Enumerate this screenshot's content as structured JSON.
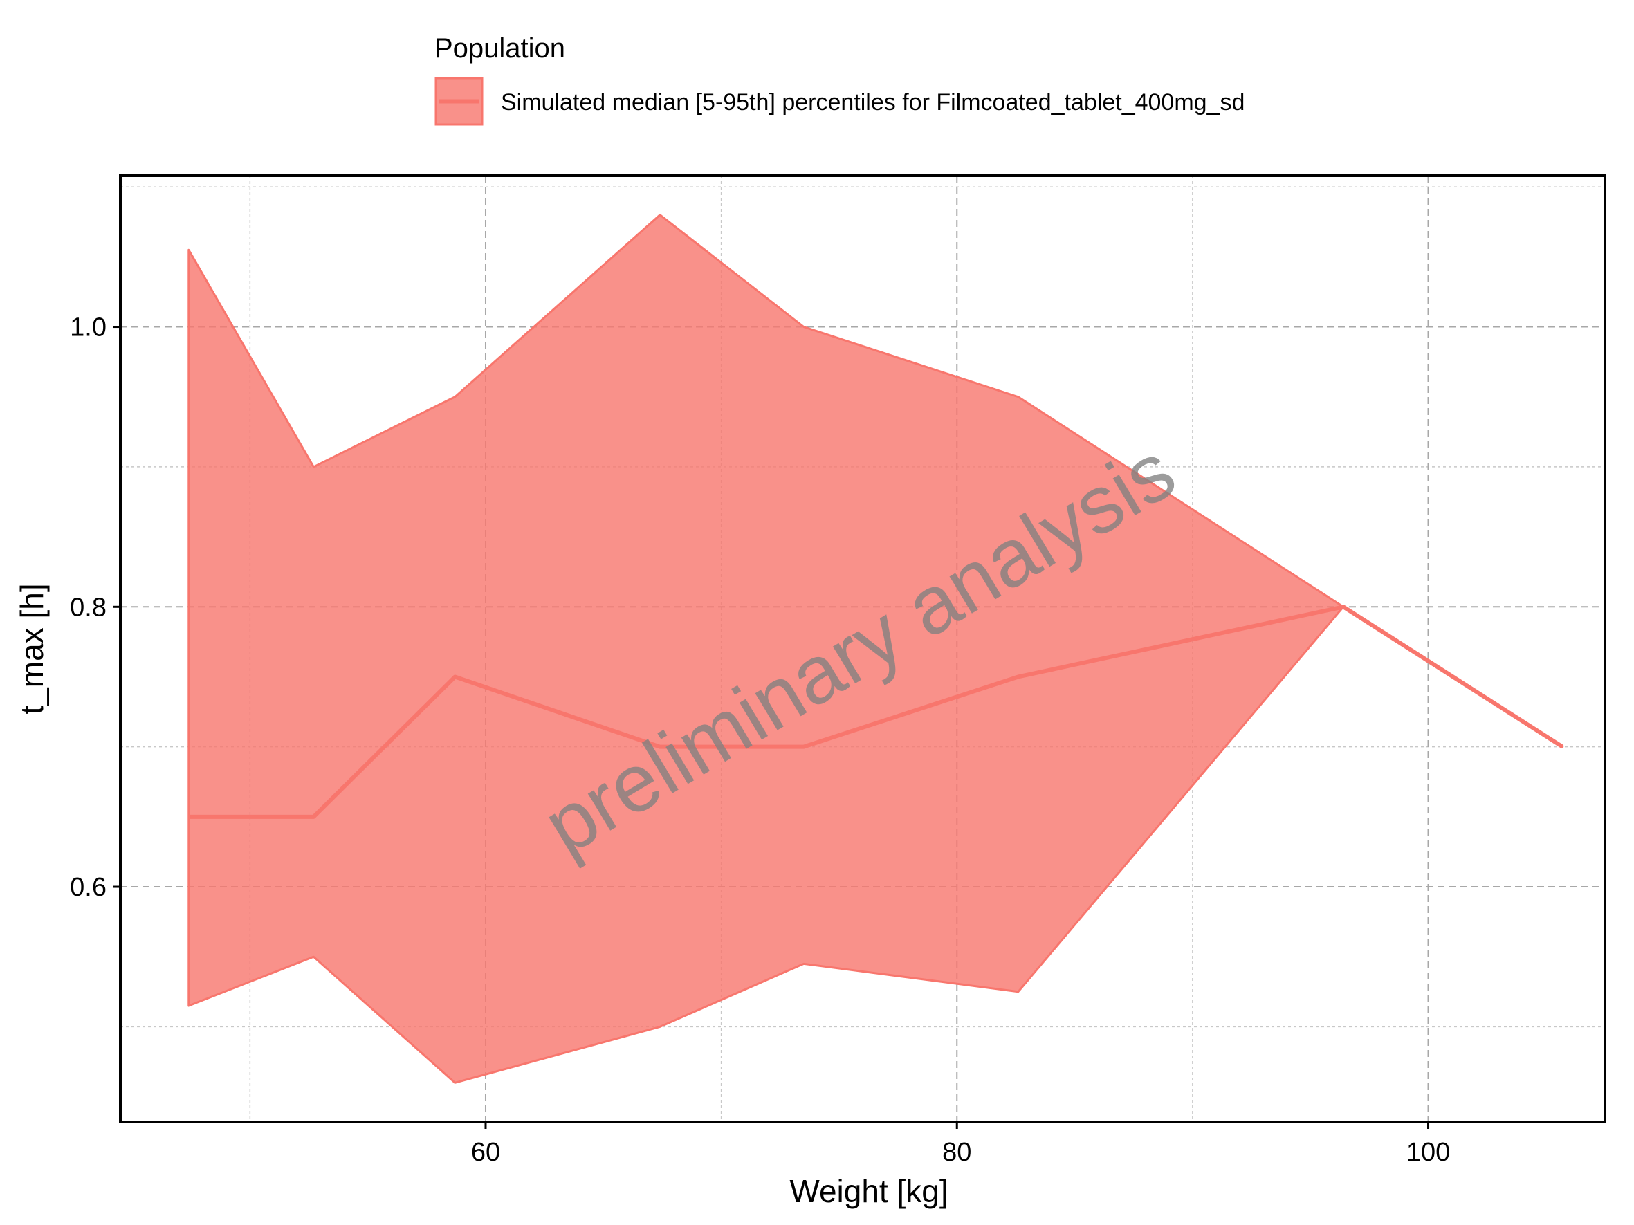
{
  "chart_data": {
    "type": "area",
    "title": "",
    "xlabel": "Weight [kg]",
    "ylabel": "t_max [h]",
    "xlim": [
      44.5,
      107.5
    ],
    "ylim": [
      0.432,
      1.108
    ],
    "x_major_ticks": [
      60,
      80,
      100
    ],
    "x_minor_ticks": [
      50,
      70,
      90
    ],
    "y_major_ticks": [
      0.6,
      0.8,
      1.0
    ],
    "y_minor_ticks": [
      0.5,
      0.7,
      0.9,
      1.1
    ],
    "x_tick_labels": [
      "60",
      "80",
      "100"
    ],
    "y_tick_labels": [
      "0.6",
      "0.8",
      "1.0"
    ],
    "grid": true,
    "legend": {
      "title": "Population",
      "position": "top",
      "entries": [
        "Simulated median [5-95th] percentiles for Filmcoated_tablet_400mg_sd"
      ]
    },
    "watermark": "preliminary analysis",
    "series": [
      {
        "name": "Simulated median [5-95th] percentiles for Filmcoated_tablet_400mg_sd",
        "color": "#F8766D",
        "x": [
          47.4,
          52.7,
          58.7,
          67.4,
          73.5,
          82.6,
          96.4,
          105.7
        ],
        "median": [
          0.65,
          0.65,
          0.75,
          0.7,
          0.7,
          0.75,
          0.8,
          0.7
        ],
        "p5": [
          0.515,
          0.55,
          0.46,
          0.5,
          0.545,
          0.525,
          0.8,
          0.7
        ],
        "p95": [
          1.055,
          0.9,
          0.95,
          1.08,
          1.0,
          0.95,
          0.8,
          0.7
        ]
      }
    ]
  }
}
